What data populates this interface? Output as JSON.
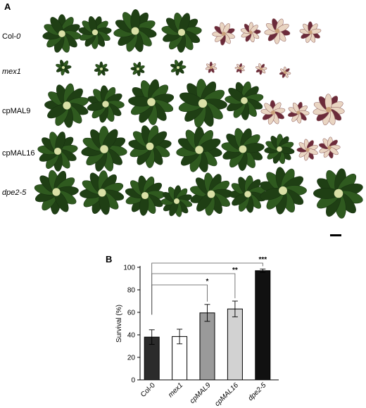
{
  "figure": {
    "panel_a_label": "A",
    "panel_b_label": "B",
    "row_labels": [
      {
        "prefix": "Col-",
        "suffix": "0",
        "suffix_italic": true,
        "italic": false
      },
      {
        "prefix": "mex1",
        "suffix": "",
        "suffix_italic": false,
        "italic": true
      },
      {
        "prefix": "cpMAL9",
        "suffix": "",
        "suffix_italic": false,
        "italic": false
      },
      {
        "prefix": "cpMAL16",
        "suffix": "",
        "suffix_italic": false,
        "italic": false
      },
      {
        "prefix": "dpe2-5",
        "suffix": "",
        "suffix_italic": false,
        "italic": true
      }
    ],
    "colors": {
      "leaf_green": "#2f5a1f",
      "leaf_dark": "#1f3f14",
      "bleached": "#e9d5c2",
      "purple": "#6b2a3a",
      "scale_bar": "#000000"
    }
  },
  "chart_data": {
    "type": "bar",
    "ylabel": "Survival (%)",
    "xlabel": "",
    "ylim": [
      0,
      100
    ],
    "yticks": [
      0,
      20,
      40,
      60,
      80,
      100
    ],
    "categories": [
      "Col-0",
      "mex1",
      "cpMAL9",
      "cpMAL16",
      "dpe2-5"
    ],
    "values": [
      38,
      38.5,
      59.5,
      63,
      97
    ],
    "errors": [
      6.5,
      6.5,
      7.5,
      7,
      1.5
    ],
    "bar_colors": [
      "#2b2b2b",
      "#ffffff",
      "#9a9a9a",
      "#d2d2d2",
      "#111111"
    ],
    "significance": [
      {
        "category": "cpMAL9",
        "label": "*"
      },
      {
        "category": "cpMAL16",
        "label": "**"
      },
      {
        "category": "dpe2-5",
        "label": "***"
      }
    ]
  }
}
